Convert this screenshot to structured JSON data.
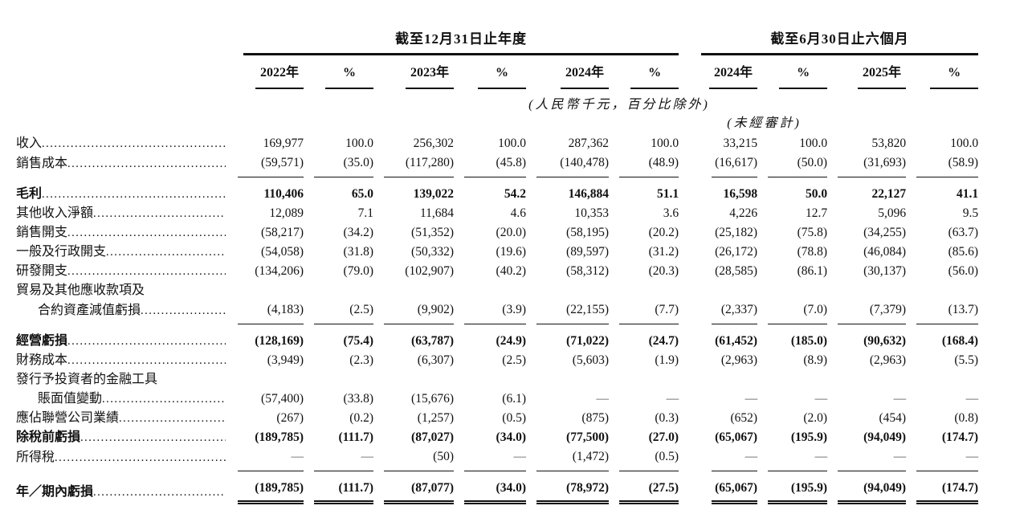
{
  "header": {
    "group1": {
      "title": "截至12月31日止年度",
      "cols": [
        "2022年",
        "%",
        "2023年",
        "%",
        "2024年",
        "%"
      ]
    },
    "group2": {
      "title": "截至6月30日止六個月",
      "cols": [
        "2024年",
        "%",
        "2025年",
        "%"
      ]
    },
    "note_units": "(人民幣千元，百分比除外)",
    "note_unaudited": "(未經審計)"
  },
  "rows": [
    {
      "label": "收入",
      "dots": true,
      "indent": false,
      "bold": false,
      "rule": "none",
      "values": [
        "169,977",
        "100.0",
        "256,302",
        "100.0",
        "287,362",
        "100.0",
        "33,215",
        "100.0",
        "53,820",
        "100.0"
      ]
    },
    {
      "label": "銷售成本",
      "dots": true,
      "indent": false,
      "bold": false,
      "rule": "single",
      "values": [
        "(59,571)",
        "(35.0)",
        "(117,280)",
        "(45.8)",
        "(140,478)",
        "(48.9)",
        "(16,617)",
        "(50.0)",
        "(31,693)",
        "(58.9)"
      ]
    },
    {
      "label": "毛利",
      "dots": true,
      "indent": false,
      "bold": true,
      "rule": "none",
      "values": [
        "110,406",
        "65.0",
        "139,022",
        "54.2",
        "146,884",
        "51.1",
        "16,598",
        "50.0",
        "22,127",
        "41.1"
      ]
    },
    {
      "label": "其他收入淨額",
      "dots": true,
      "indent": false,
      "bold": false,
      "rule": "none",
      "values": [
        "12,089",
        "7.1",
        "11,684",
        "4.6",
        "10,353",
        "3.6",
        "4,226",
        "12.7",
        "5,096",
        "9.5"
      ]
    },
    {
      "label": "銷售開支",
      "dots": true,
      "indent": false,
      "bold": false,
      "rule": "none",
      "values": [
        "(58,217)",
        "(34.2)",
        "(51,352)",
        "(20.0)",
        "(58,195)",
        "(20.2)",
        "(25,182)",
        "(75.8)",
        "(34,255)",
        "(63.7)"
      ]
    },
    {
      "label": "一般及行政開支",
      "dots": true,
      "indent": false,
      "bold": false,
      "rule": "none",
      "values": [
        "(54,058)",
        "(31.8)",
        "(50,332)",
        "(19.6)",
        "(89,597)",
        "(31.2)",
        "(26,172)",
        "(78.8)",
        "(46,084)",
        "(85.6)"
      ]
    },
    {
      "label": "研發開支",
      "dots": true,
      "indent": false,
      "bold": false,
      "rule": "none",
      "values": [
        "(134,206)",
        "(79.0)",
        "(102,907)",
        "(40.2)",
        "(58,312)",
        "(20.3)",
        "(28,585)",
        "(86.1)",
        "(30,137)",
        "(56.0)"
      ]
    },
    {
      "label": "貿易及其他應收款項及",
      "dots": false,
      "indent": false,
      "bold": false,
      "rule": "none",
      "values": []
    },
    {
      "label": "合約資產減值虧損",
      "dots": true,
      "indent": true,
      "bold": false,
      "rule": "single",
      "values": [
        "(4,183)",
        "(2.5)",
        "(9,902)",
        "(3.9)",
        "(22,155)",
        "(7.7)",
        "(2,337)",
        "(7.0)",
        "(7,379)",
        "(13.7)"
      ]
    },
    {
      "label": "經營虧損",
      "dots": true,
      "indent": false,
      "bold": true,
      "rule": "none",
      "values": [
        "(128,169)",
        "(75.4)",
        "(63,787)",
        "(24.9)",
        "(71,022)",
        "(24.7)",
        "(61,452)",
        "(185.0)",
        "(90,632)",
        "(168.4)"
      ]
    },
    {
      "label": "財務成本",
      "dots": true,
      "indent": false,
      "bold": false,
      "rule": "none",
      "values": [
        "(3,949)",
        "(2.3)",
        "(6,307)",
        "(2.5)",
        "(5,603)",
        "(1.9)",
        "(2,963)",
        "(8.9)",
        "(2,963)",
        "(5.5)"
      ]
    },
    {
      "label": "發行予投資者的金融工具",
      "dots": false,
      "indent": false,
      "bold": false,
      "rule": "none",
      "values": []
    },
    {
      "label": "賬面值變動",
      "dots": true,
      "indent": true,
      "bold": false,
      "rule": "none",
      "values": [
        "(57,400)",
        "(33.8)",
        "(15,676)",
        "(6.1)",
        "—",
        "—",
        "—",
        "—",
        "—",
        "—"
      ]
    },
    {
      "label": "應佔聯營公司業績",
      "dots": true,
      "indent": false,
      "bold": false,
      "rule": "none",
      "values": [
        "(267)",
        "(0.2)",
        "(1,257)",
        "(0.5)",
        "(875)",
        "(0.3)",
        "(652)",
        "(2.0)",
        "(454)",
        "(0.8)"
      ]
    },
    {
      "label": "除稅前虧損",
      "dots": true,
      "indent": false,
      "bold": true,
      "rule": "none",
      "values": [
        "(189,785)",
        "(111.7)",
        "(87,027)",
        "(34.0)",
        "(77,500)",
        "(27.0)",
        "(65,067)",
        "(195.9)",
        "(94,049)",
        "(174.7)"
      ]
    },
    {
      "label": "所得稅",
      "dots": true,
      "indent": false,
      "bold": false,
      "rule": "single",
      "values": [
        "—",
        "—",
        "(50)",
        "—",
        "(1,472)",
        "(0.5)",
        "—",
        "—",
        "—",
        "—"
      ]
    },
    {
      "label": "年／期內虧損",
      "dots": true,
      "indent": false,
      "bold": true,
      "rule": "double",
      "values": [
        "(189,785)",
        "(111.7)",
        "(87,077)",
        "(34.0)",
        "(78,972)",
        "(27.5)",
        "(65,067)",
        "(195.9)",
        "(94,049)",
        "(174.7)"
      ]
    }
  ]
}
